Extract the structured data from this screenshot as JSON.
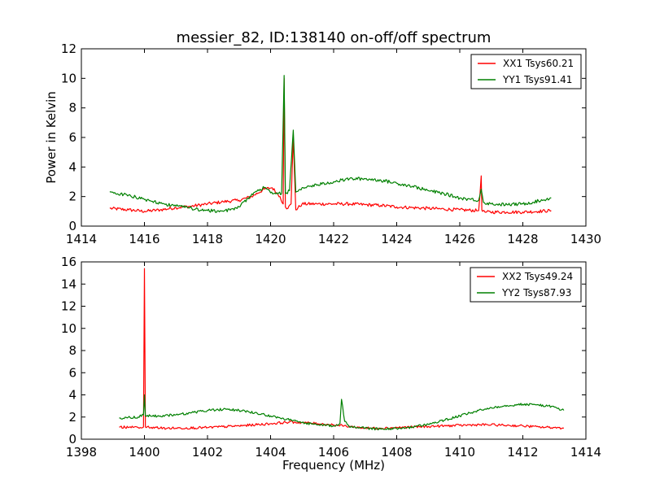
{
  "figure": {
    "title": "messier_82, ID:138140 on-off/off spectrum",
    "ylabel": "Power in Kelvin",
    "xlabel": "Frequency (MHz)"
  },
  "chart_data": [
    {
      "type": "line",
      "title": "messier_82, ID:138140 on-off/off spectrum",
      "xlabel": "",
      "ylabel": "Power in Kelvin",
      "xlim": [
        1414,
        1430
      ],
      "ylim": [
        0,
        12
      ],
      "xticks": [
        "1414",
        "1416",
        "1418",
        "1420",
        "1422",
        "1424",
        "1426",
        "1428",
        "1430"
      ],
      "yticks": [
        "0",
        "2",
        "4",
        "6",
        "8",
        "10",
        "12"
      ],
      "legend_position": "top-right",
      "series": [
        {
          "name": "XX1 Tsys60.21",
          "color": "#ff0000",
          "x": [
            1414.9,
            1415.5,
            1416.0,
            1416.5,
            1417.0,
            1417.5,
            1418.0,
            1418.5,
            1419.0,
            1419.4,
            1419.8,
            1420.05,
            1420.3,
            1420.4,
            1420.43,
            1420.47,
            1420.55,
            1420.65,
            1420.72,
            1420.8,
            1421.0,
            1421.5,
            1422.0,
            1422.5,
            1423.0,
            1423.5,
            1424.0,
            1424.5,
            1425.0,
            1425.5,
            1426.0,
            1426.6,
            1426.68,
            1426.7,
            1426.72,
            1426.8,
            1427.5,
            1428.0,
            1428.5,
            1428.9
          ],
          "y": [
            1.2,
            1.1,
            1.0,
            1.1,
            1.25,
            1.35,
            1.5,
            1.65,
            1.75,
            2.0,
            2.5,
            2.6,
            2.0,
            1.5,
            10.0,
            1.3,
            1.2,
            1.5,
            6.0,
            1.1,
            1.5,
            1.5,
            1.5,
            1.5,
            1.45,
            1.4,
            1.3,
            1.25,
            1.2,
            1.15,
            1.1,
            1.05,
            3.4,
            1.1,
            1.0,
            0.95,
            0.95,
            0.95,
            1.0,
            1.05
          ]
        },
        {
          "name": "YY1 Tsys91.41",
          "color": "#008000",
          "x": [
            1414.9,
            1415.5,
            1416.0,
            1416.5,
            1417.0,
            1417.5,
            1418.0,
            1418.5,
            1419.0,
            1419.5,
            1419.8,
            1420.1,
            1420.35,
            1420.43,
            1420.47,
            1420.6,
            1420.72,
            1420.8,
            1421.0,
            1421.5,
            1422.0,
            1422.5,
            1423.0,
            1423.5,
            1424.0,
            1424.5,
            1425.0,
            1425.5,
            1426.0,
            1426.6,
            1426.68,
            1426.75,
            1427.0,
            1427.5,
            1428.0,
            1428.5,
            1428.9
          ],
          "y": [
            2.3,
            2.1,
            1.8,
            1.55,
            1.35,
            1.2,
            1.05,
            1.0,
            1.3,
            2.3,
            2.6,
            2.2,
            2.2,
            10.2,
            2.2,
            2.4,
            6.5,
            2.3,
            2.6,
            2.8,
            3.0,
            3.2,
            3.2,
            3.1,
            2.9,
            2.7,
            2.4,
            2.2,
            1.9,
            1.75,
            2.5,
            1.6,
            1.5,
            1.45,
            1.5,
            1.7,
            1.9
          ]
        }
      ]
    },
    {
      "type": "line",
      "title": "",
      "xlabel": "Frequency (MHz)",
      "ylabel": "",
      "xlim": [
        1398,
        1414
      ],
      "ylim": [
        0,
        16
      ],
      "xticks": [
        "1398",
        "1400",
        "1402",
        "1404",
        "1406",
        "1408",
        "1410",
        "1412",
        "1414"
      ],
      "yticks": [
        "0",
        "2",
        "4",
        "6",
        "8",
        "10",
        "12",
        "14",
        "16"
      ],
      "legend_position": "top-right",
      "series": [
        {
          "name": "XX2 Tsys49.24",
          "color": "#ff0000",
          "x": [
            1399.2,
            1399.8,
            1399.97,
            1400.0,
            1400.03,
            1400.5,
            1401.0,
            1402.0,
            1403.0,
            1404.0,
            1404.6,
            1405.0,
            1405.5,
            1406.0,
            1406.5,
            1407.0,
            1407.5,
            1408.0,
            1408.5,
            1409.0,
            1409.5,
            1410.0,
            1410.5,
            1411.0,
            1411.5,
            1412.0,
            1412.5,
            1413.0,
            1413.3
          ],
          "y": [
            1.1,
            1.05,
            1.1,
            15.4,
            1.1,
            1.0,
            1.0,
            1.05,
            1.2,
            1.4,
            1.55,
            1.5,
            1.4,
            1.3,
            1.15,
            1.0,
            1.0,
            1.05,
            1.1,
            1.15,
            1.2,
            1.25,
            1.3,
            1.3,
            1.25,
            1.2,
            1.1,
            1.05,
            1.0
          ]
        },
        {
          "name": "YY2 Tsys87.93",
          "color": "#008000",
          "x": [
            1399.2,
            1399.8,
            1399.97,
            1400.0,
            1400.03,
            1400.5,
            1401.0,
            1401.5,
            1402.0,
            1402.5,
            1403.0,
            1403.5,
            1404.0,
            1404.5,
            1405.0,
            1405.5,
            1406.0,
            1406.2,
            1406.25,
            1406.35,
            1406.5,
            1407.0,
            1407.5,
            1408.0,
            1408.5,
            1409.0,
            1409.5,
            1410.0,
            1410.5,
            1411.0,
            1411.5,
            1412.0,
            1412.5,
            1413.0,
            1413.3
          ],
          "y": [
            1.9,
            2.0,
            2.2,
            4.0,
            2.1,
            2.1,
            2.2,
            2.4,
            2.6,
            2.7,
            2.6,
            2.4,
            2.1,
            1.8,
            1.5,
            1.3,
            1.2,
            1.4,
            3.6,
            1.6,
            1.1,
            1.0,
            0.9,
            0.95,
            1.1,
            1.35,
            1.7,
            2.1,
            2.5,
            2.85,
            3.05,
            3.15,
            3.1,
            2.9,
            2.6
          ]
        }
      ]
    }
  ]
}
